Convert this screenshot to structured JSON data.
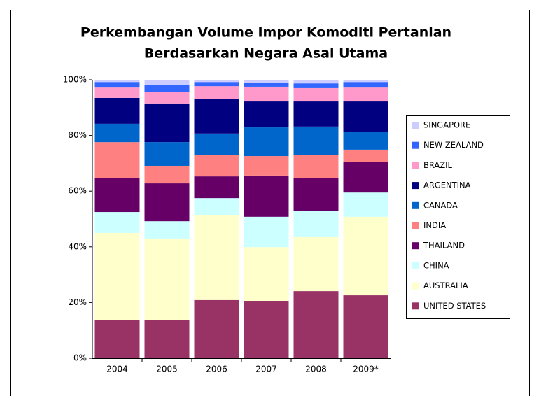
{
  "chart_data": {
    "type": "stacked_bar_100",
    "title": [
      "Perkembangan Volume Impor Komoditi Pertanian",
      "Berdasarkan Negara Asal Utama"
    ],
    "categories": [
      "2004",
      "2005",
      "2006",
      "2007",
      "2008",
      "2009*"
    ],
    "series": [
      {
        "name": "UNITED STATES",
        "color": "#993366",
        "values": [
          13.6,
          13.8,
          20.9,
          20.6,
          24.1,
          22.6
        ]
      },
      {
        "name": "AUSTRALIA",
        "color": "#ffffcc",
        "values": [
          31.4,
          29.2,
          30.6,
          19.3,
          19.4,
          28.2
        ]
      },
      {
        "name": "CHINA",
        "color": "#ccffff",
        "values": [
          7.5,
          6.2,
          6.0,
          10.9,
          9.3,
          8.7
        ]
      },
      {
        "name": "THAILAND",
        "color": "#660066",
        "values": [
          12.1,
          13.6,
          7.8,
          14.8,
          11.8,
          10.9
        ]
      },
      {
        "name": "INDIA",
        "color": "#ff8080",
        "values": [
          13.0,
          6.3,
          7.8,
          7.0,
          8.3,
          4.5
        ]
      },
      {
        "name": "CANADA",
        "color": "#0066cc",
        "values": [
          6.6,
          8.5,
          7.6,
          10.3,
          10.3,
          6.5
        ]
      },
      {
        "name": "ARGENTINA",
        "color": "#000080",
        "values": [
          9.3,
          13.9,
          12.3,
          9.3,
          9.0,
          10.8
        ]
      },
      {
        "name": "BRAZIL",
        "color": "#ff99cc",
        "values": [
          3.7,
          4.2,
          4.7,
          5.3,
          4.8,
          5.0
        ]
      },
      {
        "name": "NEW ZEALAND",
        "color": "#3366ff",
        "values": [
          2.0,
          2.3,
          1.5,
          1.5,
          1.7,
          2.0
        ]
      },
      {
        "name": "SINGAPORE",
        "color": "#ccccff",
        "values": [
          0.8,
          2.0,
          0.8,
          1.0,
          1.3,
          0.8
        ]
      }
    ],
    "ylim": [
      0,
      100
    ],
    "yticks": [
      {
        "value": 0,
        "label": "0%"
      },
      {
        "value": 20,
        "label": "20%"
      },
      {
        "value": 40,
        "label": "40%"
      },
      {
        "value": 60,
        "label": "60%"
      },
      {
        "value": 80,
        "label": "80%"
      },
      {
        "value": 100,
        "label": "100%"
      }
    ],
    "legend": "right"
  }
}
